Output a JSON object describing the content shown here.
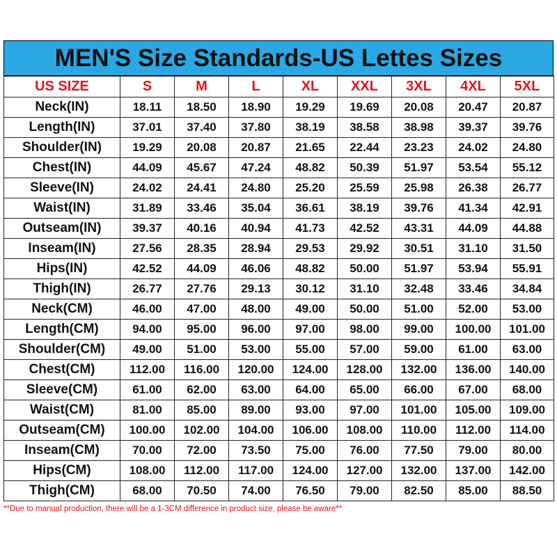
{
  "header": {
    "title": "MEN'S Size Standards-US Lettes Sizes"
  },
  "table": {
    "columns": [
      "US SIZE",
      "S",
      "M",
      "L",
      "XL",
      "XXL",
      "3XL",
      "4XL",
      "5XL"
    ],
    "rows": [
      [
        "Neck(IN)",
        "18.11",
        "18.50",
        "18.90",
        "19.29",
        "19.69",
        "20.08",
        "20.47",
        "20.87"
      ],
      [
        "Length(IN)",
        "37.01",
        "37.40",
        "37.80",
        "38.19",
        "38.58",
        "38.98",
        "39.37",
        "39.76"
      ],
      [
        "Shoulder(IN)",
        "19.29",
        "20.08",
        "20.87",
        "21.65",
        "22.44",
        "23.23",
        "24.02",
        "24.80"
      ],
      [
        "Chest(IN)",
        "44.09",
        "45.67",
        "47.24",
        "48.82",
        "50.39",
        "51.97",
        "53.54",
        "55.12"
      ],
      [
        "Sleeve(IN)",
        "24.02",
        "24.41",
        "24.80",
        "25.20",
        "25.59",
        "25.98",
        "26.38",
        "26.77"
      ],
      [
        "Waist(IN)",
        "31.89",
        "33.46",
        "35.04",
        "36.61",
        "38.19",
        "39.76",
        "41.34",
        "42.91"
      ],
      [
        "Outseam(IN)",
        "39.37",
        "40.16",
        "40.94",
        "41.73",
        "42.52",
        "43.31",
        "44.09",
        "44.88"
      ],
      [
        "Inseam(IN)",
        "27.56",
        "28.35",
        "28.94",
        "29.53",
        "29.92",
        "30.51",
        "31.10",
        "31.50"
      ],
      [
        "Hips(IN)",
        "42.52",
        "44.09",
        "46.06",
        "48.82",
        "50.00",
        "51.97",
        "53.94",
        "55.91"
      ],
      [
        "Thigh(IN)",
        "26.77",
        "27.76",
        "29.13",
        "30.12",
        "31.10",
        "32.48",
        "33.46",
        "34.84"
      ],
      [
        "Neck(CM)",
        "46.00",
        "47.00",
        "48.00",
        "49.00",
        "50.00",
        "51.00",
        "52.00",
        "53.00"
      ],
      [
        "Length(CM)",
        "94.00",
        "95.00",
        "96.00",
        "97.00",
        "98.00",
        "99.00",
        "100.00",
        "101.00"
      ],
      [
        "Shoulder(CM)",
        "49.00",
        "51.00",
        "53.00",
        "55.00",
        "57.00",
        "59.00",
        "61.00",
        "63.00"
      ],
      [
        "Chest(CM)",
        "112.00",
        "116.00",
        "120.00",
        "124.00",
        "128.00",
        "132.00",
        "136.00",
        "140.00"
      ],
      [
        "Sleeve(CM)",
        "61.00",
        "62.00",
        "63.00",
        "64.00",
        "65.00",
        "66.00",
        "67.00",
        "68.00"
      ],
      [
        "Waist(CM)",
        "81.00",
        "85.00",
        "89.00",
        "93.00",
        "97.00",
        "101.00",
        "105.00",
        "109.00"
      ],
      [
        "Outseam(CM)",
        "100.00",
        "102.00",
        "104.00",
        "106.00",
        "108.00",
        "110.00",
        "112.00",
        "114.00"
      ],
      [
        "Inseam(CM)",
        "70.00",
        "72.00",
        "73.50",
        "75.00",
        "76.00",
        "77.50",
        "79.00",
        "80.00"
      ],
      [
        "Hips(CM)",
        "108.00",
        "112.00",
        "117.00",
        "124.00",
        "127.00",
        "132.00",
        "137.00",
        "142.00"
      ],
      [
        "Thigh(CM)",
        "68.00",
        "70.50",
        "74.00",
        "76.50",
        "79.00",
        "82.50",
        "85.00",
        "88.50"
      ]
    ]
  },
  "footer": {
    "note": "**Due to manual production, there will be a 1-3CM difference in product size, please be aware**"
  }
}
